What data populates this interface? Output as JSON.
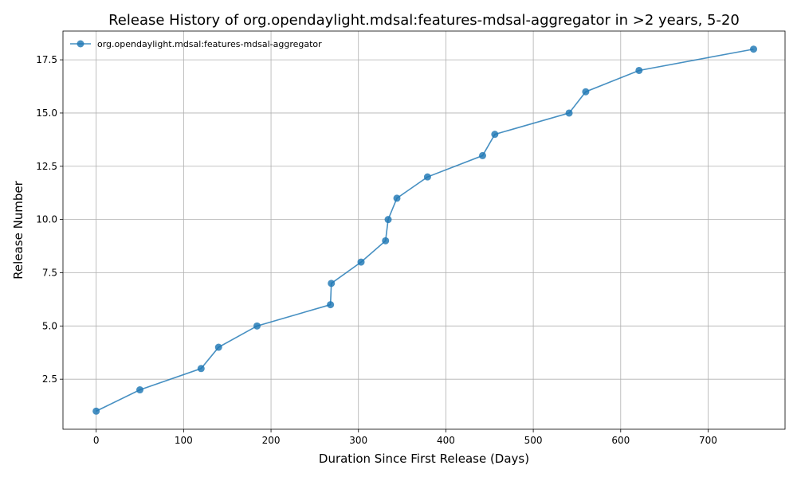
{
  "chart_data": {
    "type": "line",
    "title": "Release History of org.opendaylight.mdsal:features-mdsal-aggregator in >2 years, 5-20",
    "xlabel": "Duration Since First Release (Days)",
    "ylabel": "Release Number",
    "xlim": [
      -38,
      788
    ],
    "ylim": [
      0.15,
      18.85
    ],
    "x_ticks": [
      0,
      100,
      200,
      300,
      400,
      500,
      600,
      700
    ],
    "y_ticks": [
      2.5,
      5.0,
      7.5,
      10.0,
      12.5,
      15.0,
      17.5
    ],
    "x_tick_labels": [
      "0",
      "100",
      "200",
      "300",
      "400",
      "500",
      "600",
      "700"
    ],
    "y_tick_labels": [
      "2.5",
      "5.0",
      "7.5",
      "10.0",
      "12.5",
      "15.0",
      "17.5"
    ],
    "grid": true,
    "legend_position": "top-left",
    "series": [
      {
        "name": "org.opendaylight.mdsal:features-mdsal-aggregator",
        "color": "#1f77b4",
        "x": [
          0,
          50,
          120,
          140,
          184,
          268,
          269,
          303,
          331,
          334,
          344,
          379,
          442,
          456,
          541,
          560,
          621,
          752
        ],
        "y": [
          1,
          2,
          3,
          4,
          5,
          6,
          7,
          8,
          9,
          10,
          11,
          12,
          13,
          14,
          15,
          16,
          17,
          18
        ]
      }
    ]
  }
}
